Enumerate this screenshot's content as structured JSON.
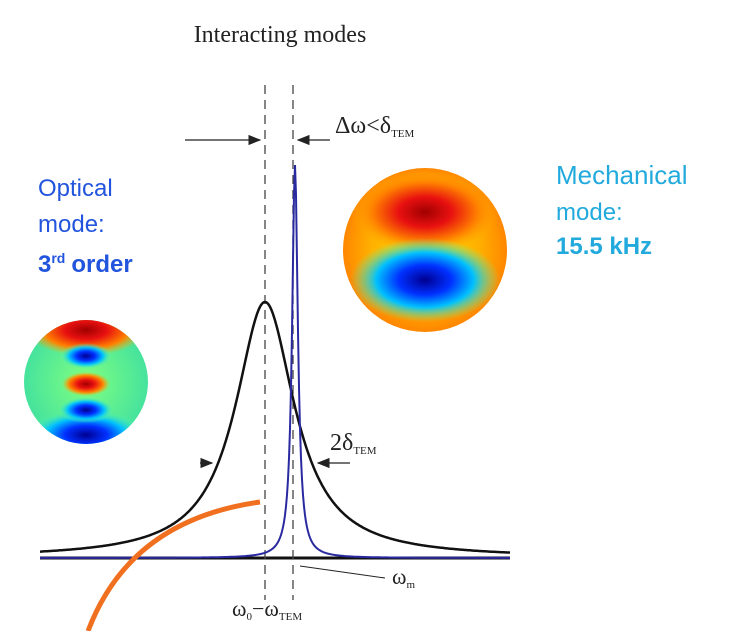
{
  "title": "Interacting modes",
  "annotations": {
    "detuning": {
      "main": "Δω<δ",
      "sub": "TEM"
    },
    "linewidth": {
      "main": "2δ",
      "sub": "TEM"
    },
    "mechanical_frequency": {
      "main": "ω",
      "sub": "m"
    },
    "difference": {
      "a": "ω",
      "a_sub": "0",
      "minus": "−",
      "b": "ω",
      "b_sub": "TEM"
    }
  },
  "optical_mode": {
    "line1": "Optical",
    "line2": "mode:",
    "order_number": "3",
    "order_suffix": "rd",
    "order_word": "order"
  },
  "mechanical_mode": {
    "line1": "Mechanical",
    "line2": "mode:",
    "frequency": "15.5 kHz"
  }
}
